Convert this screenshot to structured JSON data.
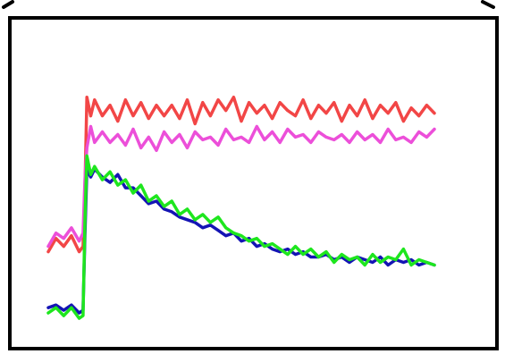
{
  "chart_data": {
    "type": "line",
    "title": "",
    "xlabel": "",
    "ylabel": "",
    "x_range": [
      0,
      100
    ],
    "y_range": [
      0,
      100
    ],
    "grid": false,
    "legend": "none",
    "series": [
      {
        "color": "#f24646",
        "x": [
          0,
          2,
          4,
          6,
          8,
          9,
          9.5,
          10,
          11,
          12,
          14,
          16,
          18,
          20,
          22,
          24,
          26,
          28,
          30,
          32,
          34,
          36,
          38,
          40,
          42,
          44,
          46,
          48,
          50,
          52,
          54,
          56,
          58,
          60,
          62,
          64,
          66,
          68,
          70,
          72,
          74,
          76,
          78,
          80,
          82,
          84,
          86,
          88,
          90,
          92,
          94,
          96,
          98,
          100
        ],
        "y": [
          29,
          34,
          31,
          35,
          29,
          31,
          52,
          87,
          80,
          86,
          80,
          84,
          78,
          86,
          80,
          85,
          79,
          84,
          80,
          84,
          79,
          86,
          77,
          85,
          80,
          86,
          82,
          87,
          78,
          85,
          81,
          84,
          79,
          85,
          82,
          80,
          86,
          79,
          84,
          81,
          85,
          78,
          84,
          80,
          86,
          79,
          84,
          81,
          85,
          78,
          83,
          80,
          84,
          81
        ]
      },
      {
        "color": "#ec4fd9",
        "x": [
          0,
          2,
          4,
          6,
          8,
          9,
          9.5,
          10,
          11,
          12,
          14,
          16,
          18,
          20,
          22,
          24,
          26,
          28,
          30,
          32,
          34,
          36,
          38,
          40,
          42,
          44,
          46,
          48,
          50,
          52,
          54,
          56,
          58,
          60,
          62,
          64,
          66,
          68,
          70,
          72,
          74,
          76,
          78,
          80,
          82,
          84,
          86,
          88,
          90,
          92,
          94,
          96,
          98,
          100
        ],
        "y": [
          31,
          36,
          34,
          38,
          33,
          36,
          56,
          68,
          76,
          70,
          74,
          70,
          73,
          69,
          75,
          68,
          72,
          67,
          74,
          70,
          73,
          68,
          74,
          71,
          72,
          69,
          75,
          71,
          72,
          70,
          76,
          71,
          74,
          70,
          75,
          72,
          73,
          70,
          74,
          72,
          71,
          73,
          70,
          74,
          71,
          73,
          70,
          75,
          71,
          72,
          70,
          74,
          72,
          75
        ]
      },
      {
        "color": "#1414b4",
        "x": [
          0,
          2,
          4,
          6,
          8,
          9,
          9.5,
          10,
          11,
          12,
          14,
          16,
          18,
          20,
          22,
          24,
          26,
          28,
          30,
          32,
          34,
          36,
          38,
          40,
          42,
          44,
          46,
          48,
          50,
          52,
          54,
          56,
          58,
          60,
          62,
          64,
          66,
          68,
          70,
          72,
          74,
          76,
          78,
          80,
          82,
          84,
          86,
          88,
          90,
          92,
          94,
          96,
          98,
          100
        ],
        "y": [
          8,
          9,
          7,
          9,
          6,
          7,
          35,
          60,
          57,
          60,
          57,
          55,
          58,
          53,
          53,
          50,
          47,
          48,
          45,
          44,
          42,
          41,
          40,
          38,
          39,
          37,
          35,
          36,
          33,
          34,
          31,
          32,
          30,
          29,
          30,
          28,
          29,
          27,
          27,
          28,
          26,
          27,
          25,
          27,
          26,
          25,
          27,
          24,
          26,
          25,
          26,
          24,
          25,
          24
        ]
      },
      {
        "color": "#1ee61e",
        "x": [
          0,
          2,
          4,
          6,
          8,
          9,
          9.5,
          10,
          11,
          12,
          14,
          16,
          18,
          20,
          22,
          24,
          26,
          28,
          30,
          32,
          34,
          36,
          38,
          40,
          42,
          44,
          46,
          48,
          50,
          52,
          54,
          56,
          58,
          60,
          62,
          64,
          66,
          68,
          70,
          72,
          74,
          76,
          78,
          80,
          82,
          84,
          86,
          88,
          90,
          92,
          94,
          96,
          98,
          100
        ],
        "y": [
          6,
          8,
          5,
          8,
          4,
          5,
          40,
          65,
          58,
          61,
          56,
          59,
          54,
          56,
          51,
          54,
          48,
          50,
          46,
          48,
          43,
          45,
          41,
          43,
          40,
          42,
          38,
          36,
          35,
          33,
          34,
          31,
          32,
          30,
          28,
          31,
          28,
          30,
          27,
          29,
          25,
          28,
          26,
          27,
          24,
          28,
          25,
          27,
          26,
          30,
          24,
          26,
          25,
          24
        ]
      }
    ]
  }
}
